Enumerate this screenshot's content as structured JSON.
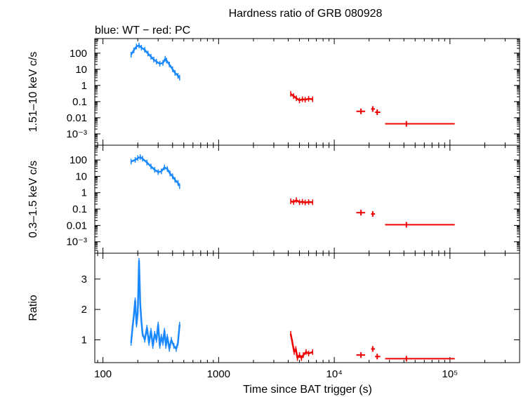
{
  "chart_data": {
    "type": "scatter",
    "title": "Hardness ratio of GRB 080928",
    "subtitle": "blue: WT − red: PC",
    "xlabel": "Time since BAT trigger (s)",
    "xscale": "log",
    "xlim": [
      85,
      400000
    ],
    "x_ticks": [
      {
        "value": 100,
        "label": "100"
      },
      {
        "value": 1000,
        "label": "1000"
      },
      {
        "value": 10000,
        "label": "10⁴"
      },
      {
        "value": 100000,
        "label": "10⁵"
      }
    ],
    "colors": {
      "WT": "#1a88ff",
      "PC": "#ee0000"
    },
    "panels": [
      {
        "id": "hard",
        "ylabel": "1.51–10 keV c/s",
        "yscale": "log",
        "ylim": [
          0.0002,
          800
        ],
        "y_ticks": [
          {
            "value": 100,
            "label": "100"
          },
          {
            "value": 10,
            "label": "10"
          },
          {
            "value": 1,
            "label": "1"
          },
          {
            "value": 0.1,
            "label": "0.1"
          },
          {
            "value": 0.01,
            "label": "0.01"
          },
          {
            "value": 0.001,
            "label": "10⁻³"
          }
        ],
        "series": [
          {
            "name": "WT",
            "points": [
              [
                175,
                80
              ],
              [
                185,
                150
              ],
              [
                195,
                260
              ],
              [
                205,
                300
              ],
              [
                215,
                220
              ],
              [
                230,
                160
              ],
              [
                245,
                95
              ],
              [
                260,
                60
              ],
              [
                275,
                40
              ],
              [
                290,
                30
              ],
              [
                310,
                22
              ],
              [
                330,
                25
              ],
              [
                345,
                45
              ],
              [
                355,
                35
              ],
              [
                375,
                20
              ],
              [
                400,
                10
              ],
              [
                420,
                6
              ],
              [
                445,
                4
              ],
              [
                460,
                3
              ]
            ]
          },
          {
            "name": "PC",
            "points": [
              [
                4200,
                0.3
              ],
              [
                4450,
                0.22
              ],
              [
                4700,
                0.16
              ],
              [
                5000,
                0.12
              ],
              [
                5300,
                0.14
              ],
              [
                5600,
                0.13
              ],
              [
                6000,
                0.15
              ],
              [
                6500,
                0.14
              ]
            ]
          },
          {
            "name": "PC_bins",
            "points": [
              [
                17000,
                0.025,
                15500,
                18500
              ],
              [
                21500,
                0.035,
                20800,
                22500
              ],
              [
                23500,
                0.022,
                22500,
                25000
              ],
              [
                42000,
                0.0042,
                27500,
                110000
              ]
            ]
          }
        ]
      },
      {
        "id": "soft",
        "ylabel": "0.3–1.5 keV c/s",
        "yscale": "log",
        "ylim": [
          0.0002,
          800
        ],
        "y_ticks": [
          {
            "value": 100,
            "label": "100"
          },
          {
            "value": 10,
            "label": "10"
          },
          {
            "value": 1,
            "label": "1"
          },
          {
            "value": 0.1,
            "label": "0.1"
          },
          {
            "value": 0.01,
            "label": "0.01"
          },
          {
            "value": 0.001,
            "label": "10⁻³"
          }
        ],
        "series": [
          {
            "name": "WT",
            "points": [
              [
                175,
                80
              ],
              [
                190,
                100
              ],
              [
                200,
                130
              ],
              [
                210,
                150
              ],
              [
                220,
                120
              ],
              [
                240,
                70
              ],
              [
                260,
                40
              ],
              [
                280,
                25
              ],
              [
                300,
                18
              ],
              [
                320,
                20
              ],
              [
                340,
                35
              ],
              [
                360,
                28
              ],
              [
                380,
                15
              ],
              [
                400,
                10
              ],
              [
                420,
                6
              ],
              [
                445,
                4
              ],
              [
                460,
                2.5
              ]
            ]
          },
          {
            "name": "PC",
            "points": [
              [
                4200,
                0.3
              ],
              [
                4450,
                0.27
              ],
              [
                4700,
                0.35
              ],
              [
                5000,
                0.26
              ],
              [
                5300,
                0.28
              ],
              [
                5600,
                0.25
              ],
              [
                6000,
                0.27
              ],
              [
                6500,
                0.26
              ]
            ]
          },
          {
            "name": "PC_bins",
            "points": [
              [
                17000,
                0.06,
                15500,
                18500
              ],
              [
                21500,
                0.05,
                20800,
                22500
              ],
              [
                42000,
                0.011,
                27500,
                110000
              ]
            ]
          }
        ]
      },
      {
        "id": "ratio",
        "ylabel": "Ratio",
        "yscale": "linear",
        "ylim": [
          0.25,
          3.85
        ],
        "y_ticks": [
          {
            "value": 1,
            "label": "1"
          },
          {
            "value": 2,
            "label": "2"
          },
          {
            "value": 3,
            "label": "3"
          }
        ],
        "series": [
          {
            "name": "WT",
            "points": [
              [
                175,
                0.9
              ],
              [
                180,
                1.4
              ],
              [
                185,
                1.8
              ],
              [
                190,
                2.3
              ],
              [
                195,
                1.5
              ],
              [
                200,
                1.9
              ],
              [
                205,
                3.6
              ],
              [
                210,
                2.2
              ],
              [
                215,
                1.6
              ],
              [
                220,
                1.2
              ],
              [
                230,
                1.0
              ],
              [
                240,
                1.4
              ],
              [
                250,
                0.9
              ],
              [
                260,
                1.3
              ],
              [
                270,
                0.8
              ],
              [
                280,
                1.2
              ],
              [
                290,
                1.0
              ],
              [
                300,
                1.5
              ],
              [
                310,
                0.8
              ],
              [
                320,
                1.1
              ],
              [
                330,
                0.9
              ],
              [
                340,
                1.3
              ],
              [
                350,
                0.8
              ],
              [
                360,
                1.1
              ],
              [
                375,
                0.7
              ],
              [
                390,
                1.0
              ],
              [
                410,
                0.8
              ],
              [
                430,
                0.7
              ],
              [
                445,
                0.9
              ],
              [
                460,
                1.5
              ]
            ]
          },
          {
            "name": "PC",
            "points": [
              [
                4200,
                1.2
              ],
              [
                4350,
                0.9
              ],
              [
                4500,
                0.6
              ],
              [
                4650,
                0.7
              ],
              [
                4800,
                0.4
              ],
              [
                5000,
                0.5
              ],
              [
                5200,
                0.4
              ],
              [
                5400,
                0.5
              ],
              [
                5700,
                0.6
              ],
              [
                6000,
                0.55
              ],
              [
                6500,
                0.6
              ]
            ]
          },
          {
            "name": "PC_bins",
            "points": [
              [
                17000,
                0.5,
                15500,
                18500
              ],
              [
                21500,
                0.7,
                20800,
                22500
              ],
              [
                23500,
                0.45,
                22500,
                25000
              ],
              [
                42000,
                0.38,
                27500,
                110000
              ]
            ]
          }
        ]
      }
    ]
  }
}
